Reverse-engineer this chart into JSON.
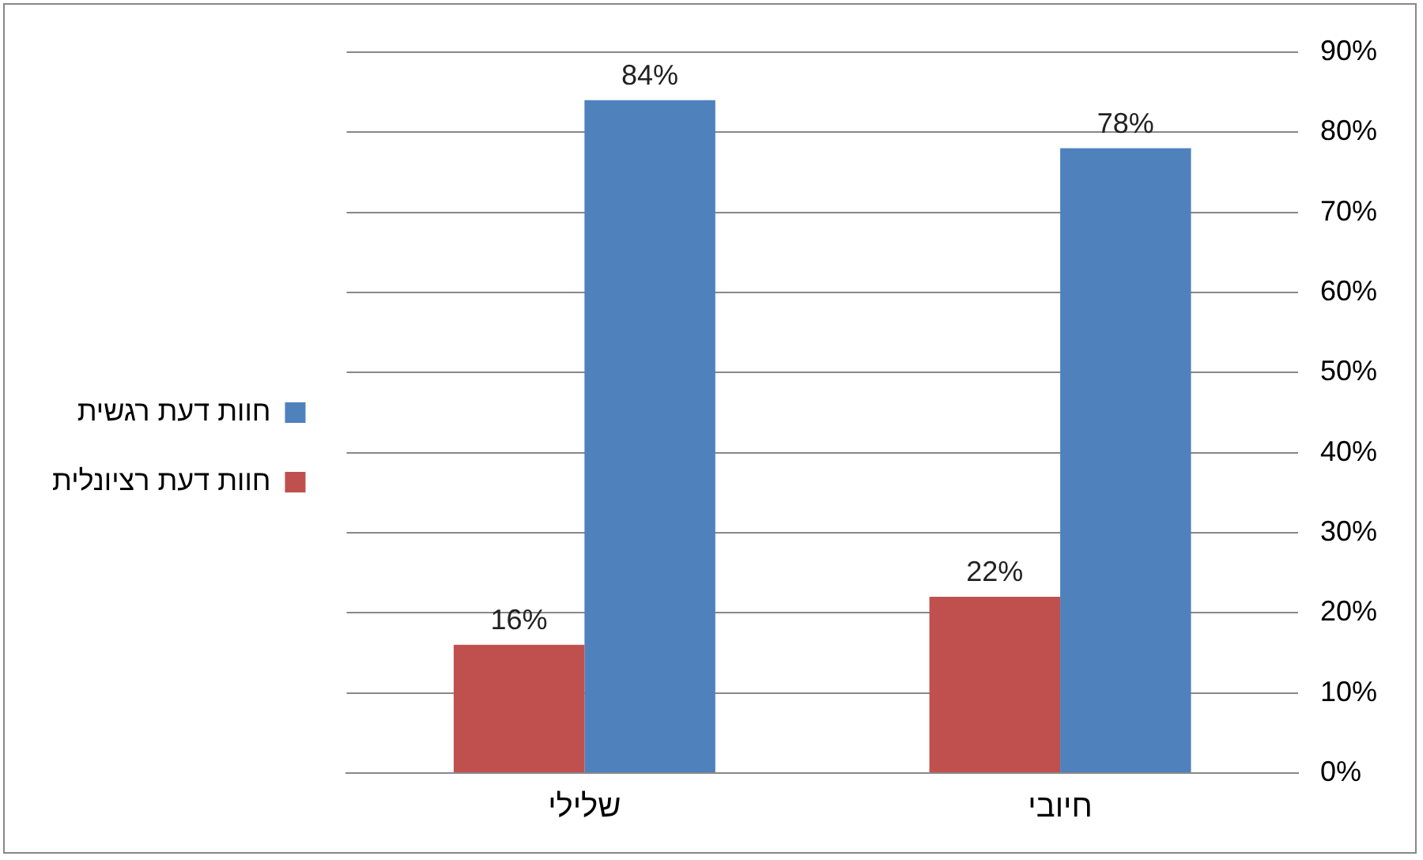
{
  "chart_data": {
    "type": "bar",
    "categories": [
      "שלילי",
      "חיובי"
    ],
    "series": [
      {
        "name": "חוות דעת רציונלית",
        "color": "#c0504d",
        "values": [
          16,
          22
        ],
        "value_labels": [
          "16%",
          "22%"
        ]
      },
      {
        "name": "חוות דעת רגשית",
        "color": "#4f81bd",
        "values": [
          84,
          78
        ],
        "value_labels": [
          "84%",
          "78%"
        ]
      }
    ],
    "ylim": [
      0,
      90
    ],
    "yticks": [
      {
        "value": 0,
        "label": "0%"
      },
      {
        "value": 10,
        "label": "10%"
      },
      {
        "value": 20,
        "label": "20%"
      },
      {
        "value": 30,
        "label": "30%"
      },
      {
        "value": 40,
        "label": "40%"
      },
      {
        "value": 50,
        "label": "50%"
      },
      {
        "value": 60,
        "label": "60%"
      },
      {
        "value": 70,
        "label": "70%"
      },
      {
        "value": 80,
        "label": "80%"
      },
      {
        "value": 90,
        "label": "90%"
      }
    ],
    "grid": "y",
    "legend": "left"
  }
}
